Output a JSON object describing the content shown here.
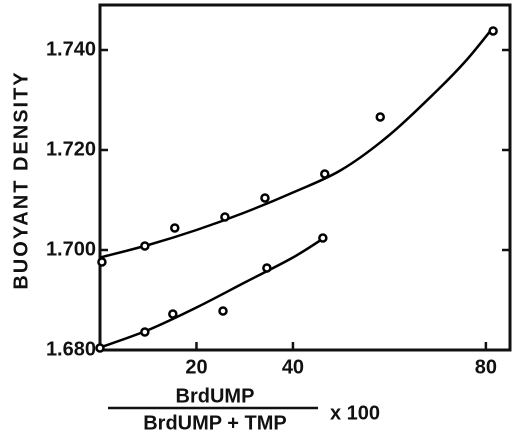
{
  "chart_data": {
    "type": "scatter",
    "ylabel": "BUOYANT DENSITY",
    "xlabel": {
      "numerator": "BrdUMP",
      "denominator": "BrdUMP + TMP",
      "factor": "x 100"
    },
    "xlim": [
      0,
      85
    ],
    "xticks": [
      20,
      40,
      80
    ],
    "ylim": [
      1.68,
      1.749
    ],
    "yticks": [
      {
        "value": 1.68,
        "label": "1.680"
      },
      {
        "value": 1.7,
        "label": "1.700"
      },
      {
        "value": 1.72,
        "label": "1.720"
      },
      {
        "value": 1.74,
        "label": "1.740"
      }
    ],
    "color": "#000000",
    "series": [
      {
        "x": [
          0.4,
          9.3,
          15.5,
          25.9,
          34.2,
          46.6,
          58.1,
          81.5
        ],
        "values": [
          1.6976,
          1.7008,
          1.7044,
          1.7066,
          1.7104,
          1.7152,
          1.7266,
          1.7438
        ]
      },
      {
        "x": [
          0,
          9.3,
          15.1,
          25.5,
          34.6,
          46.2
        ],
        "values": [
          1.6804,
          1.6836,
          1.6872,
          1.6878,
          1.6964,
          1.7024
        ]
      }
    ],
    "curves": [
      {
        "x": [
          0,
          10,
          20,
          30,
          40,
          50,
          60,
          70,
          76,
          81.5
        ],
        "values": [
          1.6985,
          1.701,
          1.704,
          1.7075,
          1.7115,
          1.716,
          1.723,
          1.732,
          1.738,
          1.7445
        ]
      },
      {
        "x": [
          0,
          10,
          20,
          30,
          40,
          46.6
        ],
        "values": [
          1.6805,
          1.684,
          1.6885,
          1.6935,
          1.6985,
          1.7025
        ]
      }
    ]
  }
}
